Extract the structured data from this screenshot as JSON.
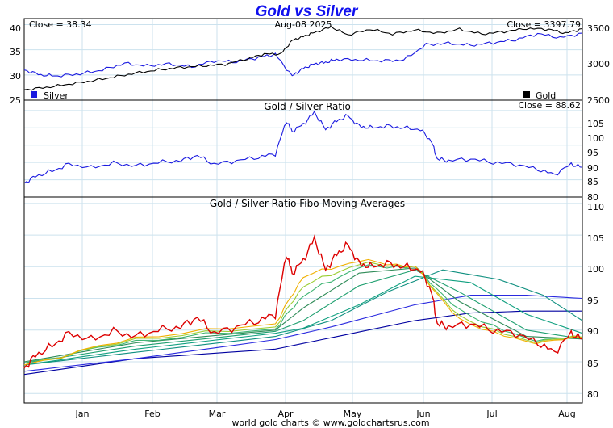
{
  "page": {
    "title": "Gold vs Silver",
    "credit": "world gold charts © www.goldchartsrus.com"
  },
  "colors": {
    "title": "#1010ee",
    "silver": "#1a1ae0",
    "gold": "#000000",
    "ratio": "#1a1ae0",
    "grid": "#cce2ee",
    "fibo": [
      "#dd0000",
      "#f0b000",
      "#9acd32",
      "#3cb371",
      "#2e8b57",
      "#20a070",
      "#10a080",
      "#109080",
      "#2a2adf",
      "#0000a0"
    ]
  },
  "chart_data": [
    {
      "type": "line",
      "panel": "top",
      "header_left": "Close = 38.34",
      "header_center": "Aug-08  2025",
      "header_right": "Close = 3397.79",
      "legend": [
        {
          "label": "Silver",
          "color": "#1a1ae0"
        },
        {
          "label": "Gold",
          "color": "#000000"
        }
      ],
      "left_axis": {
        "ticks": [
          "40",
          "35",
          "30",
          "25"
        ],
        "range": [
          25,
          41.2
        ]
      },
      "right_axis": {
        "ticks": [
          "3500",
          "3000",
          "2500"
        ],
        "range": [
          2500,
          3525
        ]
      },
      "grid": true,
      "series": [
        {
          "name": "Silver",
          "axis": "left",
          "x": [
            0,
            0.03,
            0.06,
            0.1,
            0.14,
            0.18,
            0.22,
            0.26,
            0.3,
            0.34,
            0.38,
            0.42,
            0.45,
            0.48,
            0.5,
            0.52,
            0.54,
            0.56,
            0.6,
            0.64,
            0.68,
            0.72,
            0.76,
            0.8,
            0.84,
            0.88,
            0.92,
            0.96,
            1.0
          ],
          "y": [
            31.0,
            30.0,
            29.8,
            30.2,
            31.0,
            32.3,
            31.8,
            32.2,
            31.6,
            32.8,
            32.6,
            33.5,
            34.1,
            29.8,
            31.3,
            32.2,
            32.5,
            33.1,
            33.0,
            32.8,
            33.0,
            36.0,
            36.3,
            35.9,
            36.4,
            37.0,
            38.2,
            37.4,
            38.3
          ]
        },
        {
          "name": "Gold",
          "axis": "right",
          "x": [
            0,
            0.04,
            0.08,
            0.12,
            0.16,
            0.2,
            0.24,
            0.28,
            0.32,
            0.36,
            0.4,
            0.43,
            0.46,
            0.48,
            0.5,
            0.52,
            0.55,
            0.58,
            0.62,
            0.66,
            0.7,
            0.74,
            0.78,
            0.82,
            0.86,
            0.9,
            0.94,
            0.97,
            1.0
          ],
          "y": [
            2630,
            2660,
            2700,
            2740,
            2790,
            2840,
            2880,
            2910,
            2930,
            2950,
            3020,
            3080,
            3080,
            3250,
            3300,
            3350,
            3420,
            3320,
            3390,
            3330,
            3380,
            3340,
            3390,
            3330,
            3360,
            3400,
            3390,
            3340,
            3398
          ]
        }
      ]
    },
    {
      "type": "line",
      "panel": "middle",
      "title": "Gold / Silver Ratio",
      "header_right": "Close = 88.62",
      "right_axis": {
        "ticks": [
          "105",
          "100",
          "95",
          "90",
          "85",
          "80"
        ],
        "range": [
          80,
          108
        ]
      },
      "grid": true,
      "series": [
        {
          "name": "Gold / Silver Ratio",
          "x": [
            0,
            0.02,
            0.05,
            0.08,
            0.12,
            0.16,
            0.2,
            0.24,
            0.28,
            0.31,
            0.34,
            0.38,
            0.42,
            0.45,
            0.47,
            0.48,
            0.5,
            0.52,
            0.54,
            0.56,
            0.58,
            0.6,
            0.62,
            0.65,
            0.68,
            0.71,
            0.73,
            0.74,
            0.76,
            0.8,
            0.84,
            0.88,
            0.92,
            0.95,
            0.98,
            1.0
          ],
          "y": [
            84.0,
            86.0,
            87.5,
            89.5,
            88.5,
            89.8,
            89.0,
            90.0,
            90.5,
            92.0,
            89.5,
            90.5,
            91.5,
            92.5,
            102.0,
            99.0,
            101.0,
            104.5,
            99.5,
            102.0,
            103.5,
            100.5,
            100.0,
            100.5,
            100.0,
            99.5,
            96.0,
            91.0,
            90.5,
            91.0,
            90.0,
            89.5,
            88.0,
            86.5,
            89.5,
            88.6
          ]
        }
      ]
    },
    {
      "type": "line",
      "panel": "bottom",
      "title": "Gold / Silver Ratio Fibo Moving Averages",
      "right_axis": {
        "ticks": [
          "110",
          "105",
          "100",
          "95",
          "90",
          "85",
          "80"
        ],
        "range": [
          78.5,
          111
        ]
      },
      "x_axis": {
        "ticks": [
          "Jan",
          "Feb",
          "Mar",
          "Apr",
          "May",
          "Jun",
          "Jul",
          "Aug"
        ]
      },
      "grid": true,
      "series": [
        {
          "name": "",
          "x": [
            0,
            0.02,
            0.05,
            0.08,
            0.12,
            0.16,
            0.2,
            0.24,
            0.28,
            0.31,
            0.34,
            0.38,
            0.42,
            0.45,
            0.47,
            0.48,
            0.5,
            0.52,
            0.54,
            0.56,
            0.58,
            0.6,
            0.62,
            0.65,
            0.68,
            0.71,
            0.73,
            0.74,
            0.76,
            0.8,
            0.84,
            0.88,
            0.92,
            0.95,
            0.98,
            1.0
          ],
          "y": [
            84.0,
            86.0,
            87.5,
            89.5,
            88.5,
            89.8,
            89.0,
            90.0,
            90.5,
            92.0,
            89.5,
            90.5,
            91.5,
            92.5,
            102.0,
            99.0,
            101.0,
            104.5,
            99.5,
            102.0,
            103.5,
            100.5,
            100.0,
            100.5,
            100.0,
            99.5,
            96.0,
            91.0,
            90.5,
            91.0,
            90.0,
            89.5,
            88.0,
            86.5,
            89.5,
            88.6
          ]
        },
        {
          "name": "",
          "x": [
            0,
            0.2,
            0.45,
            0.5,
            0.6,
            0.7,
            0.78,
            0.9,
            1.0
          ],
          "y": [
            84.5,
            88.8,
            91.0,
            98.5,
            101.0,
            100.0,
            91.5,
            88.0,
            88.8
          ]
        },
        {
          "name": "",
          "x": [
            0,
            0.2,
            0.45,
            0.5,
            0.6,
            0.7,
            0.78,
            0.9,
            1.0
          ],
          "y": [
            84.5,
            88.6,
            90.5,
            97.0,
            100.5,
            100.0,
            92.0,
            88.2,
            88.9
          ]
        },
        {
          "name": "",
          "x": [
            0,
            0.2,
            0.45,
            0.5,
            0.6,
            0.7,
            0.78,
            0.9,
            1.0
          ],
          "y": [
            84.8,
            88.3,
            90.2,
            95.5,
            100.0,
            100.0,
            93.0,
            88.5,
            88.7
          ]
        },
        {
          "name": "",
          "x": [
            0,
            0.2,
            0.45,
            0.5,
            0.6,
            0.7,
            0.78,
            0.9,
            1.0
          ],
          "y": [
            85.0,
            88.0,
            90.0,
            93.5,
            99.0,
            99.8,
            94.5,
            89.0,
            88.6
          ]
        },
        {
          "name": "",
          "x": [
            0,
            0.2,
            0.45,
            0.5,
            0.6,
            0.7,
            0.78,
            0.9,
            1.0
          ],
          "y": [
            84.8,
            87.5,
            89.8,
            91.5,
            97.0,
            99.5,
            96.0,
            90.0,
            88.6
          ]
        },
        {
          "name": "",
          "x": [
            0,
            0.2,
            0.45,
            0.5,
            0.6,
            0.7,
            0.8,
            0.9,
            1.0
          ],
          "y": [
            84.5,
            87.0,
            89.5,
            90.3,
            94.0,
            98.5,
            97.5,
            92.5,
            89.5
          ]
        },
        {
          "name": "",
          "x": [
            0,
            0.2,
            0.45,
            0.55,
            0.65,
            0.75,
            0.85,
            0.93,
            1.0
          ],
          "y": [
            84.5,
            86.5,
            89.0,
            91.5,
            96.0,
            99.5,
            98.0,
            95.5,
            91.5
          ]
        },
        {
          "name": "",
          "x": [
            0,
            0.2,
            0.45,
            0.55,
            0.7,
            0.8,
            0.9,
            1.0
          ],
          "y": [
            83.5,
            85.5,
            88.5,
            90.5,
            94.0,
            95.5,
            95.5,
            95.0
          ]
        },
        {
          "name": "",
          "x": [
            0,
            0.2,
            0.45,
            0.55,
            0.7,
            0.8,
            0.9,
            1.0
          ],
          "y": [
            83.0,
            85.5,
            87.0,
            88.8,
            91.5,
            92.7,
            93.0,
            93.0
          ]
        }
      ]
    }
  ]
}
